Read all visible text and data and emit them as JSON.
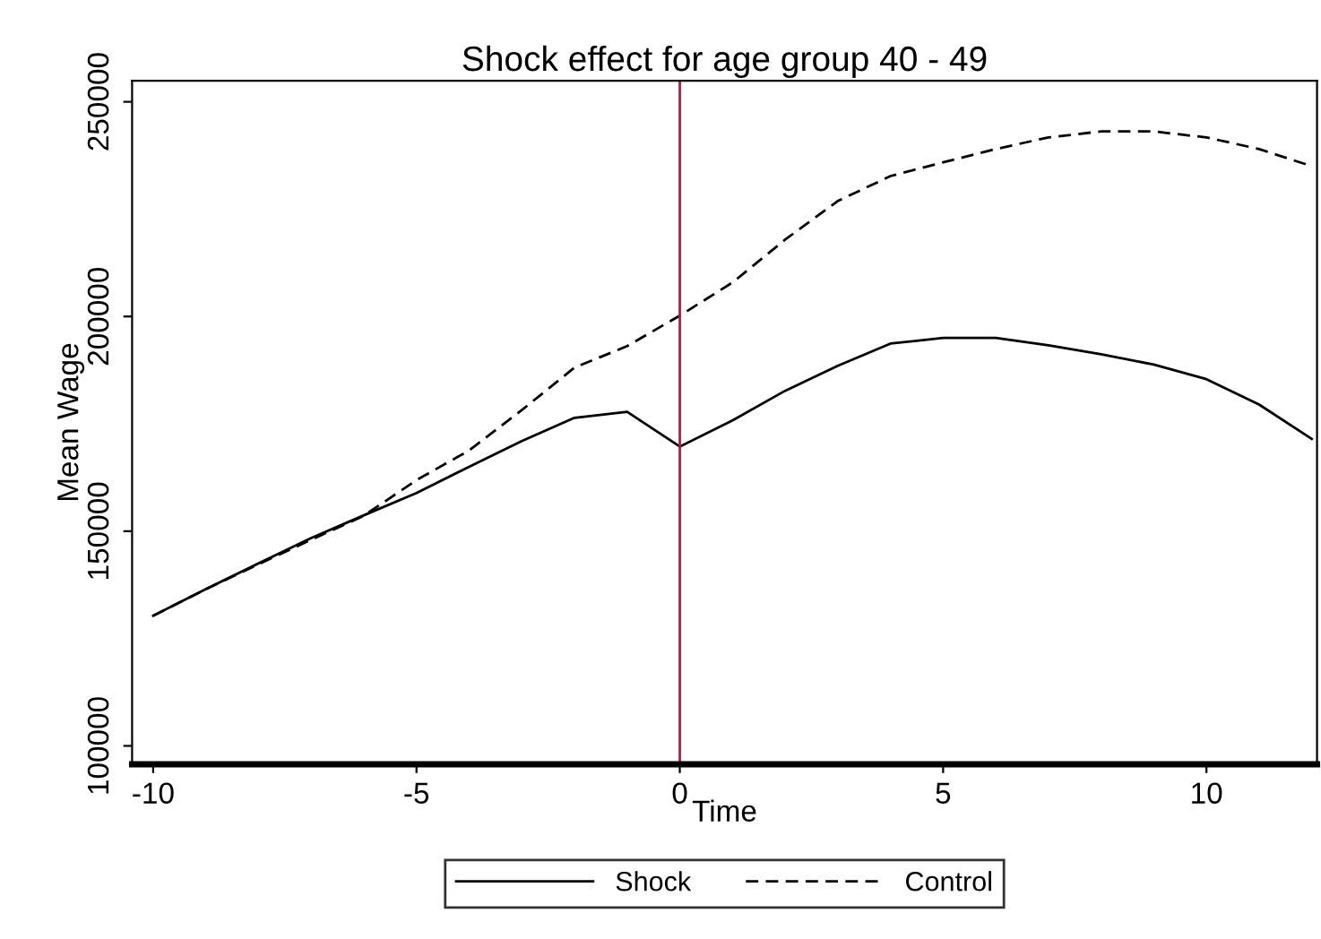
{
  "chart_data": {
    "type": "line",
    "title": "Shock effect for age group 40 - 49",
    "xlabel": "Time",
    "ylabel": "Mean Wage",
    "x": [
      -10,
      -9,
      -8,
      -7,
      -6,
      -5,
      -4,
      -3,
      -2,
      -1,
      0,
      1,
      2,
      3,
      4,
      5,
      6,
      7,
      8,
      9,
      10,
      11,
      12
    ],
    "series": [
      {
        "name": "Shock",
        "color": "#000000",
        "line_style": "solid",
        "values": [
          130300,
          136500,
          142500,
          148400,
          153700,
          158900,
          165000,
          171000,
          176400,
          177800,
          169700,
          175800,
          182700,
          188500,
          193700,
          195000,
          195000,
          193300,
          191200,
          188800,
          185400,
          179500,
          171500
        ]
      },
      {
        "name": "Control",
        "color": "#000000",
        "line_style": "dashed",
        "values": [
          130300,
          136500,
          142300,
          148000,
          153600,
          161900,
          168800,
          178200,
          188100,
          193100,
          200200,
          207900,
          217900,
          226900,
          232700,
          235900,
          239000,
          241700,
          243100,
          243100,
          241700,
          239000,
          235000
        ]
      }
    ],
    "xlim": [
      -10.4,
      12.1
    ],
    "ylim": [
      95700,
      254900
    ],
    "xticks": [
      -10,
      -5,
      0,
      5,
      10
    ],
    "yticks": [
      100000,
      150000,
      200000,
      250000
    ],
    "ref_lines": [
      {
        "axis": "x",
        "value": 0,
        "color": "#c8103a"
      }
    ],
    "grid": false,
    "legend": "bottom",
    "marker": "none"
  }
}
